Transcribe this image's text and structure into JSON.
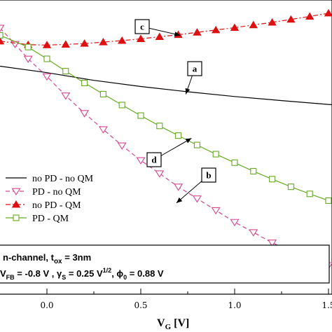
{
  "chart_data": {
    "type": "line",
    "xlabel": "V_G [V]",
    "xlim": [
      -0.25,
      1.55
    ],
    "ylim": [
      0,
      1
    ],
    "x_ticks": [
      "0.0",
      "0.5",
      "1.0",
      "1.5"
    ],
    "x_tick_values": [
      0.0,
      0.5,
      1.0,
      1.5
    ],
    "x_minor_tick_values": [
      0.25,
      0.75,
      1.25
    ],
    "series": [
      {
        "name": "no PD - no QM",
        "color": "#000000",
        "marker": "none",
        "dash": "solid",
        "x": [
          -0.25,
          0.0,
          0.25,
          0.5,
          0.75,
          1.0,
          1.25,
          1.5,
          1.55
        ],
        "y": [
          0.775,
          0.753,
          0.727,
          0.706,
          0.688,
          0.672,
          0.658,
          0.645,
          0.643
        ]
      },
      {
        "name": "PD - no QM",
        "color": "#d4488f",
        "marker": "triangle-down-open",
        "dash": "dashed",
        "x": [
          -0.25,
          -0.17,
          -0.1,
          0.0,
          0.1,
          0.2,
          0.3,
          0.4,
          0.5,
          0.6,
          0.7,
          0.8,
          0.9,
          1.0,
          1.1,
          1.2,
          1.3,
          1.4,
          1.5
        ],
        "y": [
          0.905,
          0.85,
          0.8,
          0.74,
          0.675,
          0.615,
          0.56,
          0.505,
          0.455,
          0.41,
          0.365,
          0.325,
          0.285,
          0.245,
          0.21,
          0.175,
          0.145,
          0.12,
          0.098
        ]
      },
      {
        "name": "no PD - QM",
        "color": "#dd1111",
        "marker": "triangle-up-filled",
        "dash": "dashdot",
        "x": [
          -0.25,
          -0.1,
          0.0,
          0.1,
          0.2,
          0.3,
          0.4,
          0.5,
          0.6,
          0.7,
          0.8,
          0.9,
          1.0,
          1.1,
          1.2,
          1.3,
          1.4,
          1.5
        ],
        "y": [
          0.86,
          0.848,
          0.847,
          0.849,
          0.852,
          0.857,
          0.862,
          0.868,
          0.875,
          0.882,
          0.89,
          0.898,
          0.906,
          0.915,
          0.924,
          0.934,
          0.944,
          0.955
        ]
      },
      {
        "name": "PD - QM",
        "color": "#66aa22",
        "marker": "square-open",
        "dash": "solid",
        "x": [
          -0.25,
          -0.1,
          0.0,
          0.1,
          0.2,
          0.3,
          0.4,
          0.5,
          0.6,
          0.7,
          0.8,
          0.9,
          1.0,
          1.1,
          1.2,
          1.3,
          1.4,
          1.5
        ],
        "y": [
          0.88,
          0.84,
          0.8,
          0.758,
          0.718,
          0.68,
          0.643,
          0.607,
          0.572,
          0.539,
          0.507,
          0.476,
          0.447,
          0.418,
          0.391,
          0.365,
          0.341,
          0.318
        ]
      }
    ],
    "annotations": [
      {
        "label": "a",
        "x": 0.74,
        "y": 0.68
      },
      {
        "label": "b",
        "x": 0.69,
        "y": 0.31
      },
      {
        "label": "c",
        "x": 0.71,
        "y": 0.88
      },
      {
        "label": "d",
        "x": 0.77,
        "y": 0.53
      }
    ],
    "legend_position": "middle-left"
  },
  "info_box": {
    "line1_main": "n-channel, t",
    "line1_sub": "ox",
    "line1_tail": " = 3nm",
    "line2_v": "V",
    "line2_fb_sub": "FB",
    "line2_fb_val": " = -0.8 V , ",
    "line2_gamma": "γ",
    "line2_gamma_sub": "S",
    "line2_gamma_val": " = 0.25 V",
    "line2_gamma_sup": "1/2",
    "line2_sep": ", ",
    "line2_phi": "ϕ",
    "line2_phi_sub": "0",
    "line2_phi_val": " = 0.88 V"
  },
  "xlabel_parts": {
    "main": "V",
    "sub": "G",
    "tail": " [V]"
  }
}
